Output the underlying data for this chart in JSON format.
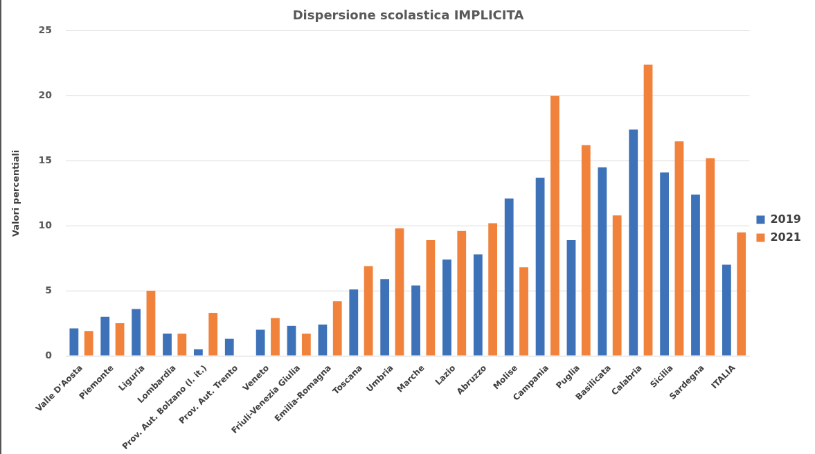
{
  "chart_data": {
    "type": "bar",
    "title": "Dispersione scolastica IMPLICITA",
    "ylabel": "Valori percentiali",
    "categories": [
      "Valle D'Aosta",
      "Piemonte",
      "Liguria",
      "Lombardia",
      "Prov. Aut. Bolzano (l. it.)",
      "Prov. Aut. Trento",
      "Veneto",
      "Friuli-Venezia Giulia",
      "Emilia-Romagna",
      "Toscana",
      "Umbria",
      "Marche",
      "Lazio",
      "Abruzzo",
      "Molise",
      "Campania",
      "Puglia",
      "Basilicata",
      "Calabria",
      "Sicilia",
      "Sardegna",
      "ITALIA"
    ],
    "series": [
      {
        "name": "2019",
        "color": "#3d72b8",
        "values": [
          2.1,
          3.0,
          3.6,
          1.7,
          0.5,
          1.3,
          2.0,
          2.3,
          2.4,
          5.1,
          5.9,
          5.4,
          7.4,
          7.8,
          12.1,
          13.7,
          8.9,
          14.5,
          17.4,
          14.1,
          12.4,
          7.0
        ]
      },
      {
        "name": "2021",
        "color": "#f0823c",
        "values": [
          1.9,
          2.5,
          5.0,
          1.7,
          3.3,
          null,
          2.9,
          1.7,
          4.2,
          6.9,
          9.8,
          8.9,
          9.6,
          10.2,
          6.8,
          20.0,
          16.2,
          10.8,
          22.4,
          16.5,
          15.2,
          9.5
        ]
      }
    ],
    "ylim": [
      0,
      25
    ],
    "yticks": [
      0,
      5,
      10,
      15,
      20,
      25
    ],
    "grid": "y",
    "legend": "right"
  }
}
